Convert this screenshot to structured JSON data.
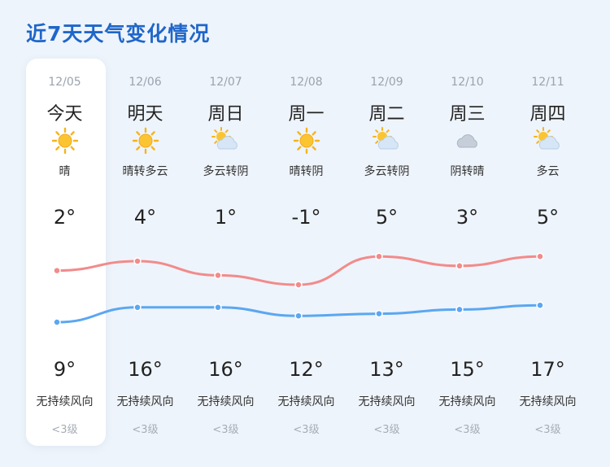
{
  "title": "近7天天气变化情况",
  "days": [
    {
      "date": "12/05",
      "week": "今天",
      "icon": "sun-icon",
      "condition": "晴",
      "high": "2°",
      "low": "9°",
      "wind": "无持续风向",
      "level": "<3级"
    },
    {
      "date": "12/06",
      "week": "明天",
      "icon": "sun-icon",
      "condition": "晴转多云",
      "high": "4°",
      "low": "16°",
      "wind": "无持续风向",
      "level": "<3级"
    },
    {
      "date": "12/07",
      "week": "周日",
      "icon": "partly-cloudy-icon",
      "condition": "多云转阴",
      "high": "1°",
      "low": "16°",
      "wind": "无持续风向",
      "level": "<3级"
    },
    {
      "date": "12/08",
      "week": "周一",
      "icon": "sun-icon",
      "condition": "晴转阴",
      "high": "-1°",
      "low": "12°",
      "wind": "无持续风向",
      "level": "<3级"
    },
    {
      "date": "12/09",
      "week": "周二",
      "icon": "partly-cloudy-icon",
      "condition": "多云转阴",
      "high": "5°",
      "low": "13°",
      "wind": "无持续风向",
      "level": "<3级"
    },
    {
      "date": "12/10",
      "week": "周三",
      "icon": "cloud-icon",
      "condition": "阴转晴",
      "high": "3°",
      "low": "15°",
      "wind": "无持续风向",
      "level": "<3级"
    },
    {
      "date": "12/11",
      "week": "周四",
      "icon": "partly-cloudy-icon",
      "condition": "多云",
      "high": "5°",
      "low": "17°",
      "wind": "无持续风向",
      "level": "<3级"
    }
  ],
  "chart_data": {
    "type": "line",
    "categories": [
      "12/05",
      "12/06",
      "12/07",
      "12/08",
      "12/09",
      "12/10",
      "12/11"
    ],
    "series": [
      {
        "values": [
          2,
          4,
          1,
          -1,
          5,
          3,
          5
        ],
        "color": "#f28b8b"
      },
      {
        "values": [
          9,
          16,
          16,
          12,
          13,
          15,
          17
        ],
        "color": "#5aa7f2"
      }
    ]
  },
  "colors": {
    "title": "#1f66c9",
    "background": "#eef4fb",
    "card": "#ffffff"
  }
}
